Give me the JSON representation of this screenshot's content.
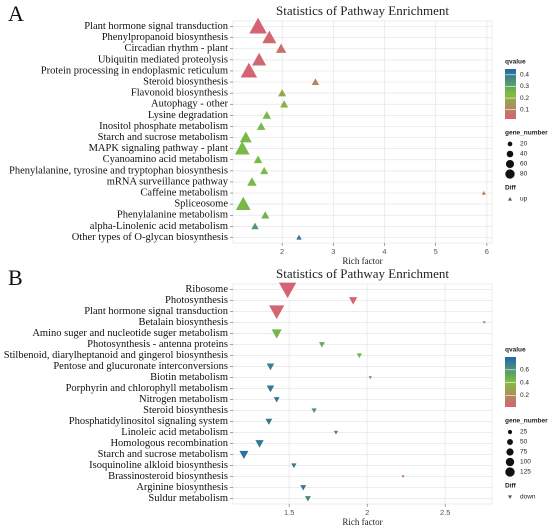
{
  "chart_data": [
    {
      "type": "scatter",
      "panel_label": "A",
      "title": "Statistics of Pathway Enrichment",
      "x_label": "Rich factor",
      "marker": "triangle-up",
      "grid": true,
      "categories": [
        "Plant hormone signal transduction",
        "Phenylpropanoid biosynthesis",
        "Circadian rhythm - plant",
        "Ubiquitin mediated proteolysis",
        "Protein processing in endoplasmic reticulum",
        "Steroid biosynthesis",
        "Flavonoid biosynthesis",
        "Autophagy - other",
        "Lysine degradation",
        "Inositol phosphate metabolism",
        "Starch and sucrose metabolism",
        "MAPK signaling pathway - plant",
        "Cyanoamino acid metabolism",
        "Phenylalanine, tyrosine and tryptophan biosynthesis",
        "mRNA surveillance pathway",
        "Caffeine metabolism",
        "Spliceosome",
        "Phenylalanine metabolism",
        "alpha-Linolenic acid metabolism",
        "Other types of O-glycan biosynthesis"
      ],
      "values": [
        1.53,
        1.75,
        1.98,
        1.55,
        1.35,
        2.65,
        2.0,
        2.04,
        1.7,
        1.59,
        1.29,
        1.22,
        1.53,
        1.65,
        1.41,
        5.94,
        1.24,
        1.67,
        1.47,
        2.33
      ],
      "sizes": [
        85,
        55,
        30,
        55,
        75,
        15,
        18,
        18,
        20,
        20,
        40,
        60,
        20,
        18,
        25,
        5,
        60,
        18,
        15,
        8
      ],
      "qvalues": [
        0.03,
        0.04,
        0.06,
        0.04,
        0.03,
        0.1,
        0.18,
        0.2,
        0.25,
        0.25,
        0.25,
        0.25,
        0.25,
        0.25,
        0.25,
        0.1,
        0.25,
        0.27,
        0.33,
        0.42
      ],
      "xlim": [
        1.04,
        6.1
      ],
      "xticks": [
        2,
        3,
        4,
        5,
        6
      ],
      "colorbar": {
        "title": "qvalue",
        "lim": [
          0.02,
          0.45
        ],
        "ticks": [
          0.1,
          0.2,
          0.3,
          0.4
        ],
        "colors": [
          "#d95f76",
          "#7fbf3f",
          "#2166ac"
        ]
      },
      "size_legend": {
        "title": "gene_number",
        "ticks": [
          20,
          40,
          60,
          80
        ]
      },
      "shape_legend": {
        "title": "Diff",
        "entries": [
          "up"
        ]
      }
    },
    {
      "type": "scatter",
      "panel_label": "B",
      "title": "Statistics of Pathway Enrichment",
      "x_label": "Rich factor",
      "marker": "triangle-down",
      "grid": true,
      "categories": [
        "Ribosome",
        "Photosynthesis",
        "Plant hormone signal transduction",
        "Betalain biosynthesis",
        "Amino suger and nucleotide suger metabolism",
        "Photosynthesis - antenna proteins",
        "Stilbenoid, diarylheptanoid and gingerol biosynthesis",
        "Pentose and glucuronate interconversions",
        "Biotin metabolism",
        "Porphyrin and chlorophyll metabolism",
        "Nitrogen metabolism",
        "Steroid biosynthesis",
        "Phosphatidylinositol signaling system",
        "Linoleic acid metabolism",
        "Homologous recombination",
        "Starch and sucrose metabolism",
        "Isoquinoline alkloid biosynthesis",
        "Brassinosteroid biosynthesis",
        "Arginine biosynthesis",
        "Suldur metabolism"
      ],
      "values": [
        1.49,
        1.91,
        1.42,
        2.75,
        1.42,
        1.71,
        1.95,
        1.38,
        2.02,
        1.38,
        1.42,
        1.66,
        1.37,
        1.8,
        1.31,
        1.21,
        1.53,
        2.23,
        1.59,
        1.62
      ],
      "sizes": [
        130,
        30,
        100,
        4,
        45,
        15,
        12,
        25,
        5,
        25,
        15,
        12,
        20,
        8,
        30,
        35,
        12,
        4,
        15,
        15
      ],
      "qvalues": [
        0.03,
        0.05,
        0.04,
        0.5,
        0.45,
        0.5,
        0.45,
        0.7,
        0.5,
        0.72,
        0.72,
        0.6,
        0.72,
        0.65,
        0.72,
        0.75,
        0.72,
        0.1,
        0.72,
        0.65
      ],
      "xlim": [
        1.14,
        2.8
      ],
      "xticks": [
        1.5,
        2.0,
        2.5
      ],
      "colorbar": {
        "title": "qvalue",
        "lim": [
          0.02,
          0.8
        ],
        "ticks": [
          0.2,
          0.4,
          0.6
        ],
        "colors": [
          "#d95f76",
          "#7fbf3f",
          "#2166ac"
        ]
      },
      "size_legend": {
        "title": "gene_number",
        "ticks": [
          25,
          50,
          75,
          100,
          125
        ]
      },
      "shape_legend": {
        "title": "Diff",
        "entries": [
          "down"
        ]
      }
    }
  ]
}
